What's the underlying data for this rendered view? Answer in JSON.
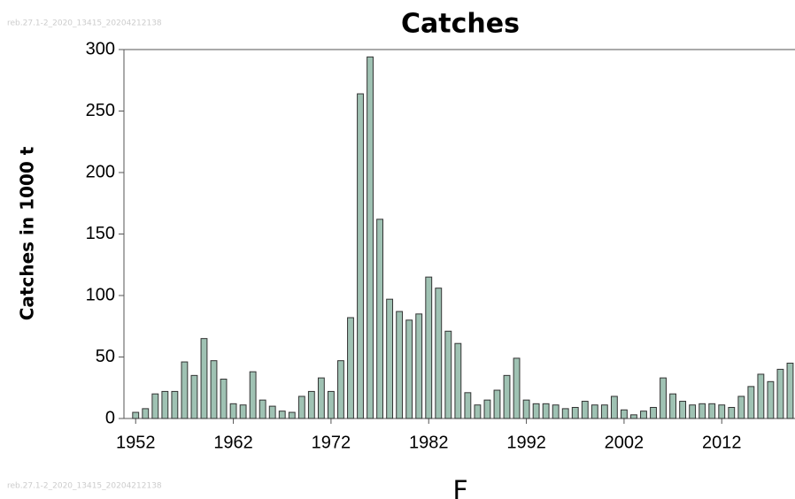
{
  "chart_data": {
    "type": "bar",
    "title": "Catches",
    "ylabel": "Catches in 1000 t",
    "xlabel": "F",
    "watermarks": [
      "reb.27.1-2_2020_13415_20204212138",
      "reb.27.1-2_2020_13415_20204212138"
    ],
    "x": [
      1952,
      1953,
      1954,
      1955,
      1956,
      1957,
      1958,
      1959,
      1960,
      1961,
      1962,
      1963,
      1964,
      1965,
      1966,
      1967,
      1968,
      1969,
      1970,
      1971,
      1972,
      1973,
      1974,
      1975,
      1976,
      1977,
      1978,
      1979,
      1980,
      1981,
      1982,
      1983,
      1984,
      1985,
      1986,
      1987,
      1988,
      1989,
      1990,
      1991,
      1992,
      1993,
      1994,
      1995,
      1996,
      1997,
      1998,
      1999,
      2000,
      2001,
      2002,
      2003,
      2004,
      2005,
      2006,
      2007,
      2008,
      2009,
      2010,
      2011,
      2012,
      2013,
      2014,
      2015,
      2016,
      2017,
      2018,
      2019
    ],
    "values": [
      5,
      8,
      20,
      22,
      22,
      46,
      35,
      65,
      47,
      32,
      12,
      11,
      38,
      15,
      10,
      6,
      5,
      18,
      22,
      33,
      22,
      47,
      82,
      264,
      294,
      162,
      97,
      87,
      80,
      85,
      115,
      106,
      71,
      61,
      21,
      11,
      15,
      23,
      35,
      49,
      15,
      12,
      12,
      11,
      8,
      9,
      14,
      11,
      11,
      18,
      7,
      3,
      6,
      9,
      33,
      20,
      14,
      11,
      12,
      12,
      11,
      9,
      18,
      26,
      36,
      30,
      40,
      45
    ],
    "color": "#9fc2b3",
    "xlim": [
      1950.8,
      2019.5
    ],
    "xticks": [
      1952,
      1962,
      1972,
      1982,
      1992,
      2002,
      2012
    ],
    "ylim": [
      0,
      300
    ],
    "yticks": [
      0,
      50,
      100,
      150,
      200,
      250,
      300
    ]
  }
}
